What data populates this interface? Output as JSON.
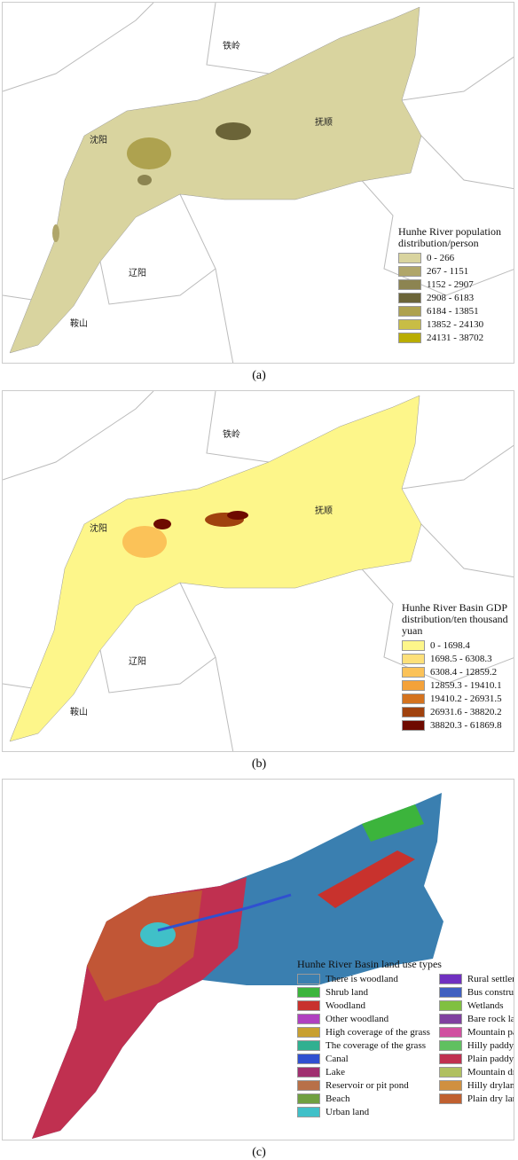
{
  "panels": [
    {
      "caption": "(a)",
      "cities": [
        "铁岭",
        "沈阳",
        "抚顺",
        "辽阳",
        "鞍山"
      ],
      "legend": {
        "title": "Hunhe River population distribution/person",
        "items": [
          {
            "label": "0 - 266",
            "color": "#d9d49f"
          },
          {
            "label": "267 - 1151",
            "color": "#b0a66a"
          },
          {
            "label": "1152 - 2907",
            "color": "#8c8451"
          },
          {
            "label": "2908 - 6183",
            "color": "#6b6438"
          },
          {
            "label": "6184 - 13851",
            "color": "#aea24f"
          },
          {
            "label": "13852 - 24130",
            "color": "#c8bd45"
          },
          {
            "label": "24131 - 38702",
            "color": "#b9ad00"
          }
        ]
      }
    },
    {
      "caption": "(b)",
      "cities": [
        "铁岭",
        "沈阳",
        "抚顺",
        "辽阳",
        "鞍山"
      ],
      "legend": {
        "title": "Hunhe River Basin GDP distribution/ten thousand yuan",
        "items": [
          {
            "label": "0 - 1698.4",
            "color": "#fdf68a"
          },
          {
            "label": "1698.5 - 6308.3",
            "color": "#fde07a"
          },
          {
            "label": "6308.4 - 12859.2",
            "color": "#fbc258"
          },
          {
            "label": "12859.3 - 19410.1",
            "color": "#f4a23a"
          },
          {
            "label": "19410.2 - 26931.5",
            "color": "#d4731f"
          },
          {
            "label": "26931.6 - 38820.2",
            "color": "#a0420e"
          },
          {
            "label": "38820.3 - 61869.8",
            "color": "#6e0a00"
          }
        ]
      }
    },
    {
      "caption": "(c)",
      "legend": {
        "title": "Hunhe River Basin land use types",
        "items": [
          {
            "label": "There is woodland",
            "color": "#3a7fb0"
          },
          {
            "label": "Shrub land",
            "color": "#3cb43c"
          },
          {
            "label": "Woodland",
            "color": "#c8322d"
          },
          {
            "label": "Other woodland",
            "color": "#b040c0"
          },
          {
            "label": "High coverage of the grass",
            "color": "#c8a030"
          },
          {
            "label": "The coverage of the grass",
            "color": "#30b090"
          },
          {
            "label": "Canal",
            "color": "#3050d0"
          },
          {
            "label": "Lake",
            "color": "#a03070"
          },
          {
            "label": "Reservoir or pit pond",
            "color": "#b87048"
          },
          {
            "label": "Beach",
            "color": "#70a040"
          },
          {
            "label": "Urban land",
            "color": "#40c0c8"
          },
          {
            "label": "Rural settlements",
            "color": "#7030c0"
          },
          {
            "label": "Bus construction land",
            "color": "#4060c0"
          },
          {
            "label": "Wetlands",
            "color": "#80c040"
          },
          {
            "label": "Bare rock land",
            "color": "#8040a0"
          },
          {
            "label": "Mountain paddy fields",
            "color": "#d050a0"
          },
          {
            "label": "Hilly paddy fields",
            "color": "#60c060"
          },
          {
            "label": "Plain paddy fields",
            "color": "#c03050"
          },
          {
            "label": "Mountain dry land",
            "color": "#b0c060"
          },
          {
            "label": "Hilly drylands",
            "color": "#d09040"
          },
          {
            "label": "Plain dry land",
            "color": "#c06030"
          }
        ]
      }
    }
  ]
}
